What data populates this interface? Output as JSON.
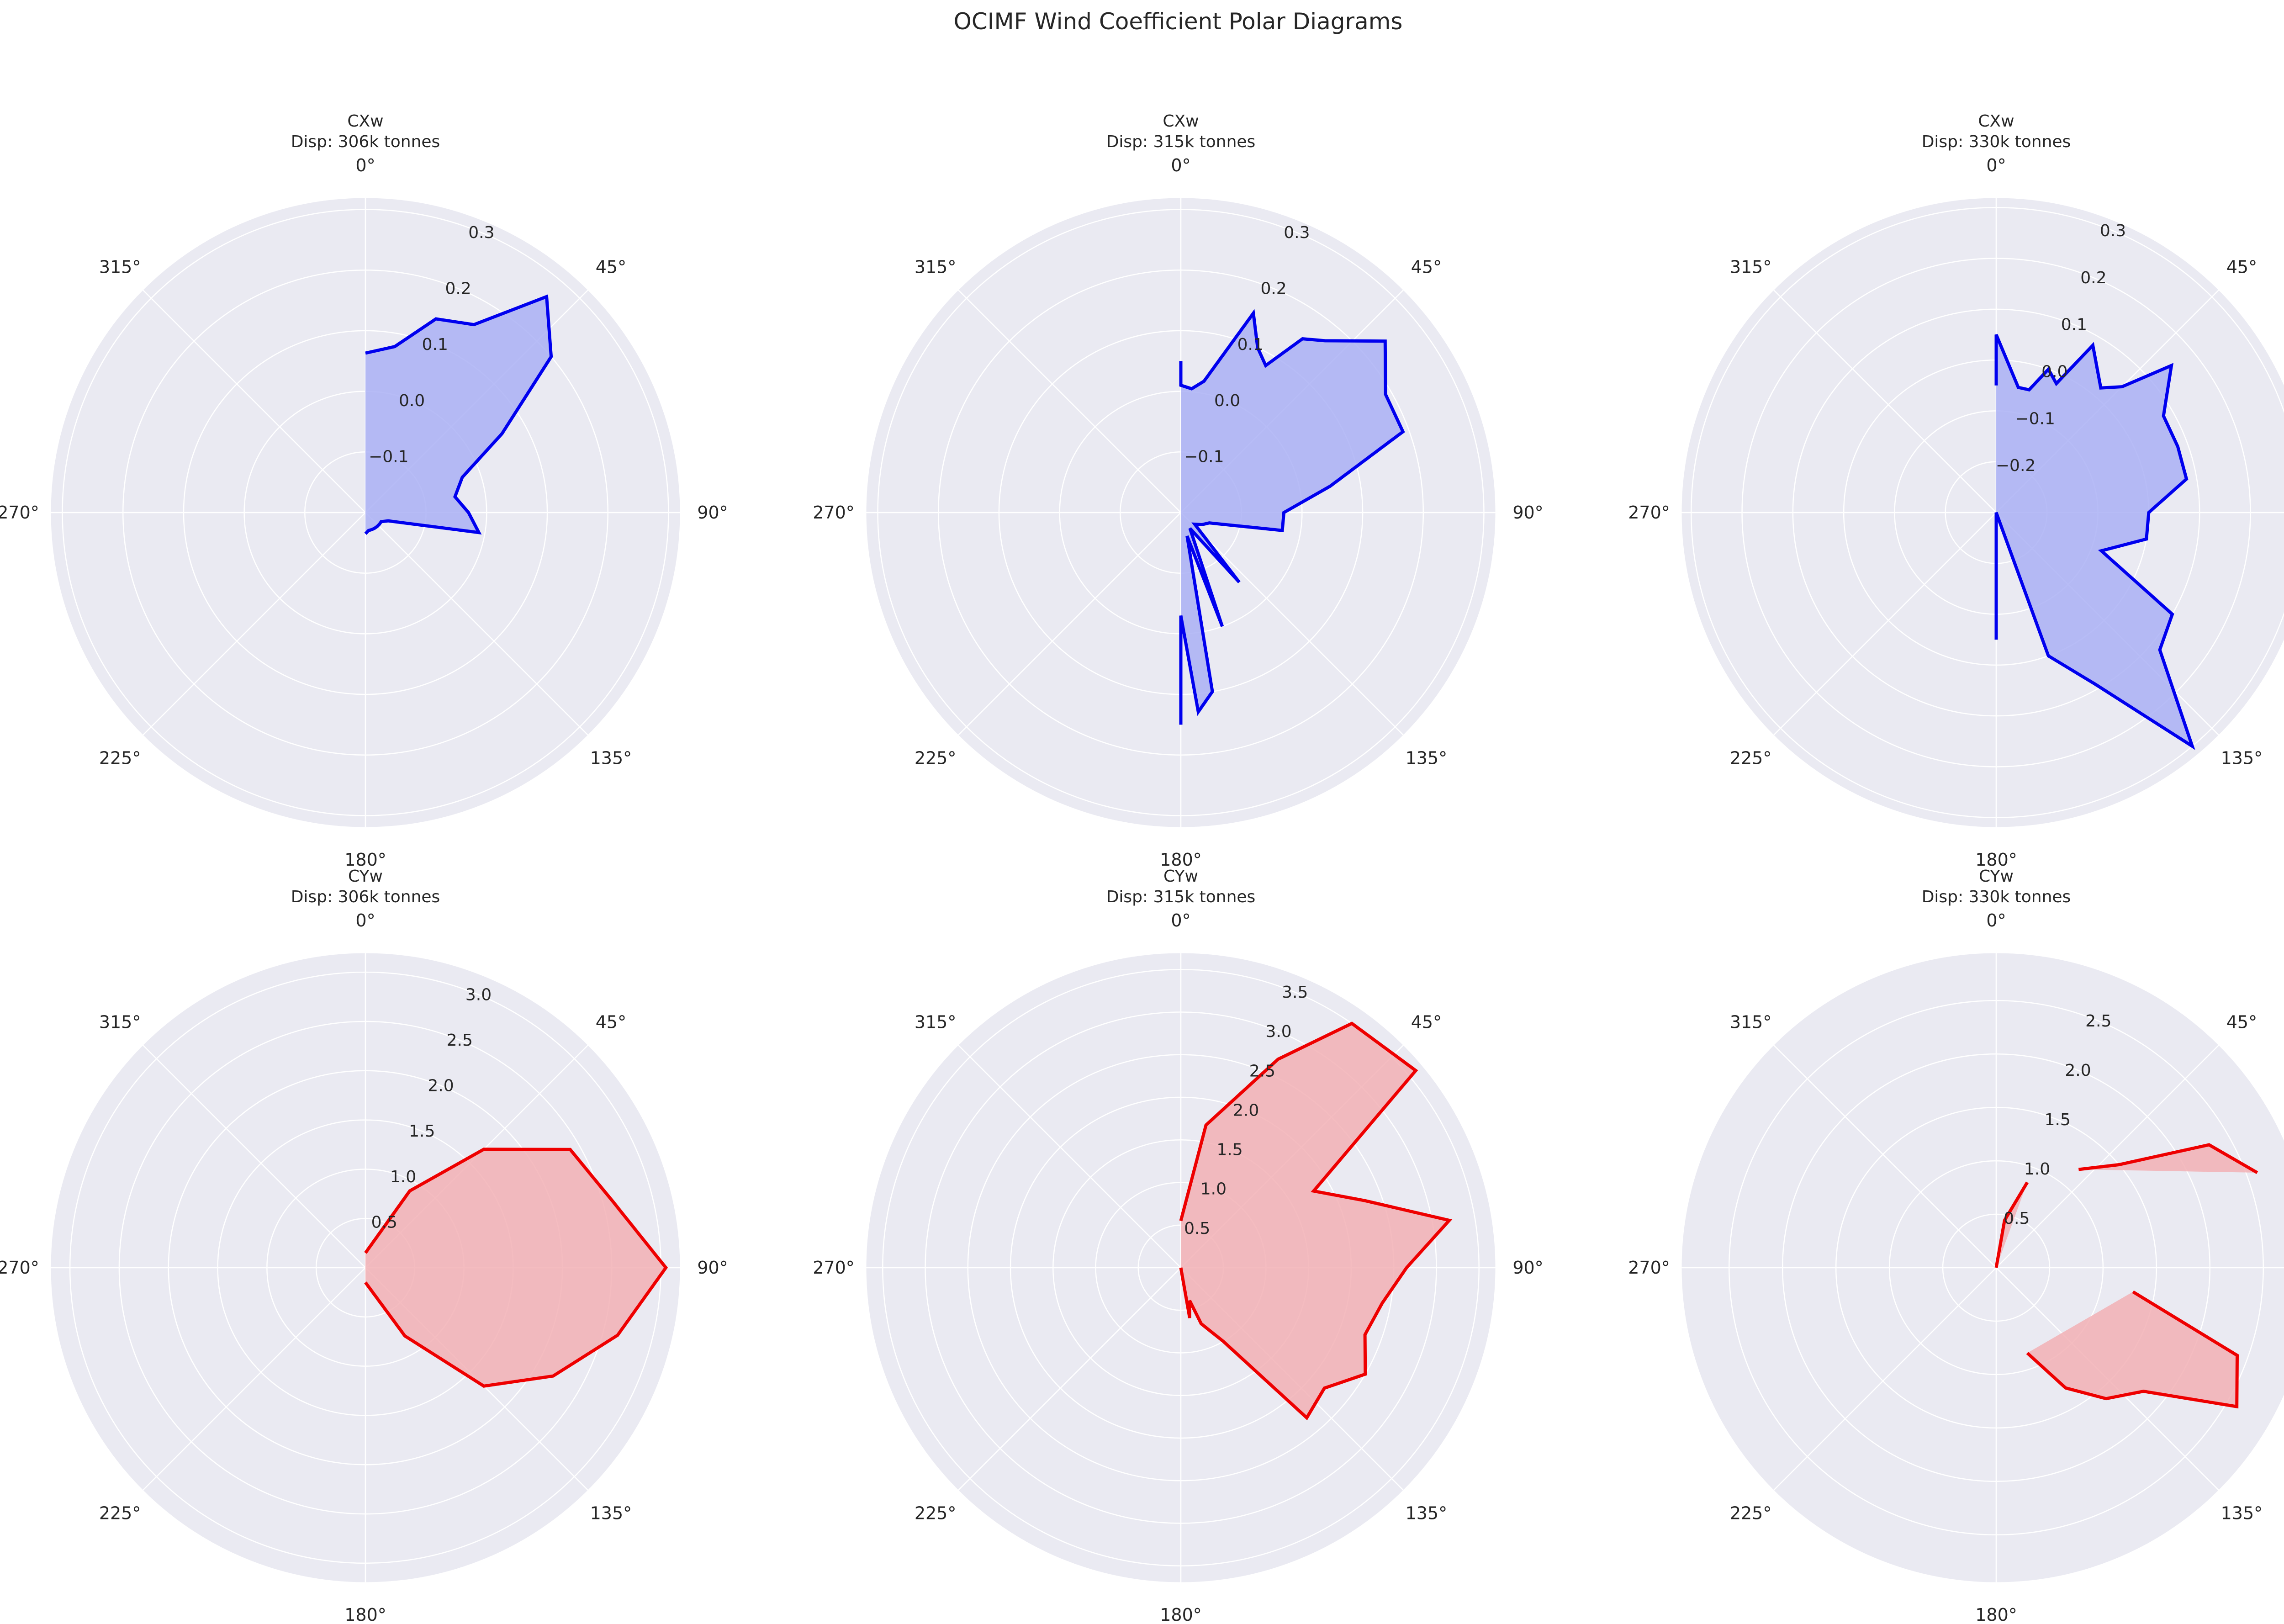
{
  "title": "OCIMF Wind Coefficient Polar Diagrams",
  "colors": {
    "cx_line": "#0000ee",
    "cx_fill": "#aab0f5",
    "cy_line": "#ee0000",
    "cy_fill": "#f2b0b5",
    "axes_bg": "#eaeaf2",
    "grid": "#ffffff"
  },
  "angle_ticks": [
    "0°",
    "45°",
    "90°",
    "135°",
    "180°",
    "225°",
    "270°",
    "315°"
  ],
  "chart_data": [
    {
      "type": "polar-line",
      "panel": "CXw 306k",
      "title_line1": "CXw",
      "title_line2": "Disp: 306k tonnes",
      "rlim": [
        -0.2,
        0.32
      ],
      "rticks": [
        -0.1,
        0.0,
        0.1,
        0.2,
        0.3
      ],
      "rtick_labels": [
        "−0.1",
        "0.0",
        "0.1",
        "0.2",
        "0.3"
      ],
      "theta": [
        0,
        10,
        20,
        30,
        40,
        50,
        60,
        70,
        80,
        90,
        100,
        110,
        120,
        130,
        140,
        150,
        160,
        170,
        180
      ],
      "r": [
        0.063,
        0.078,
        0.14,
        0.158,
        0.265,
        0.2,
        0.06,
        -0.03,
        -0.05,
        -0.03,
        -0.01,
        -0.16,
        -0.17,
        -0.17,
        -0.17,
        -0.17,
        -0.17,
        -0.17,
        -0.165
      ],
      "fill": true
    },
    {
      "type": "polar-line",
      "panel": "CXw 315k",
      "title_line1": "CXw",
      "title_line2": "Disp: 315k tonnes",
      "rlim": [
        -0.2,
        0.32
      ],
      "rticks": [
        -0.1,
        0.0,
        0.1,
        0.2,
        0.3
      ],
      "rtick_labels": [
        "−0.1",
        "0.0",
        "0.1",
        "0.2",
        "0.3"
      ],
      "theta": [
        0,
        0,
        0,
        5,
        10,
        20,
        25,
        30,
        35,
        40,
        50,
        60,
        70,
        80,
        90,
        100,
        110,
        120,
        130,
        140,
        150,
        160,
        165,
        170,
        175,
        180,
        180
      ],
      "r": [
        0.05,
        0.05,
        0.01,
        0.005,
        0.02,
        0.15,
        0.1,
        0.08,
        0.15,
        0.17,
        0.24,
        0.19,
        0.19,
        0.05,
        -0.03,
        -0.03,
        -0.15,
        -0.16,
        -0.17,
        -0.05,
        -0.17,
        0.0,
        -0.16,
        0.1,
        0.13,
        -0.03,
        0.15
      ],
      "fill": true
    },
    {
      "type": "polar-line",
      "panel": "CXw 330k",
      "title_line1": "CXw",
      "title_line2": "Disp: 330k tonnes",
      "rlim": [
        -0.3,
        0.32
      ],
      "rticks": [
        -0.2,
        -0.1,
        0.0,
        0.1,
        0.2,
        0.3
      ],
      "rtick_labels": [
        "−0.2",
        "−0.1",
        "0.0",
        "0.1",
        "0.2",
        "0.3"
      ],
      "theta": [
        0,
        0,
        10,
        15,
        20,
        25,
        30,
        40,
        45,
        50,
        60,
        70,
        80,
        90,
        100,
        110,
        120,
        130,
        140,
        150,
        160,
        170,
        180,
        180
      ],
      "r": [
        -0.05,
        0.05,
        -0.05,
        -0.05,
        0.0,
        -0.02,
        0.08,
        0.02,
        0.05,
        0.15,
        0.08,
        0.08,
        0.08,
        0.0,
        0.0,
        -0.08,
        0.1,
        0.12,
        0.3,
        0.09,
        0.0,
        -0.3,
        -0.3,
        -0.05
      ],
      "fill": true
    },
    {
      "type": "polar-line",
      "panel": "CYw 306k",
      "title_line1": "CYw",
      "title_line2": "Disp: 306k tonnes",
      "rlim": [
        0,
        3.2
      ],
      "rticks": [
        0.5,
        1.0,
        1.5,
        2.0,
        2.5,
        3.0
      ],
      "rtick_labels": [
        "0.5",
        "1.0",
        "1.5",
        "2.0",
        "2.5",
        "3.0"
      ],
      "theta": [
        0,
        30,
        45,
        60,
        75,
        90,
        105,
        120,
        135,
        150,
        180
      ],
      "r": [
        0.15,
        0.9,
        1.7,
        2.4,
        2.6,
        3.05,
        2.65,
        2.2,
        1.7,
        0.8,
        0.15
      ],
      "fill": true
    },
    {
      "type": "polar-line",
      "panel": "CYw 315k",
      "title_line1": "CYw",
      "title_line2": "Disp: 315k tonnes",
      "rlim": [
        0,
        3.7
      ],
      "rticks": [
        0.5,
        1.0,
        1.5,
        2.0,
        2.5,
        3.0,
        3.5
      ],
      "rtick_labels": [
        "0.5",
        "1.0",
        "1.5",
        "2.0",
        "2.5",
        "3.0",
        "3.5"
      ],
      "theta": [
        0,
        10,
        25,
        35,
        50,
        60,
        70,
        80,
        90,
        100,
        110,
        120,
        130,
        140,
        150,
        160,
        165,
        170,
        180
      ],
      "r": [
        0.55,
        1.7,
        2.7,
        3.5,
        3.6,
        1.8,
        2.3,
        3.2,
        2.65,
        2.4,
        2.3,
        2.5,
        2.2,
        2.3,
        1.0,
        0.7,
        0.4,
        0.6,
        0.0
      ],
      "fill": true
    },
    {
      "type": "polar-line",
      "panel": "CYw 330k",
      "title_line1": "CYw",
      "title_line2": "Disp: 330k tonnes",
      "rlim": [
        0,
        2.95
      ],
      "rticks": [
        0.5,
        1.0,
        1.5,
        2.0,
        2.5
      ],
      "rtick_labels": [
        "0.5",
        "1.0",
        "1.5",
        "2.0",
        "2.5"
      ],
      "theta": [
        0,
        10,
        20,
        30,
        40,
        50,
        60,
        70,
        80,
        90,
        100,
        110,
        120,
        130,
        140,
        150,
        160,
        170,
        180
      ],
      "r": [
        0.0,
        0.45,
        0.85,
        null,
        1.2,
        1.5,
        2.3,
        2.6,
        null,
        null,
        1.3,
        2.4,
        2.6,
        1.8,
        1.6,
        1.3,
        0.85,
        null,
        0.0
      ],
      "fill": true
    }
  ]
}
